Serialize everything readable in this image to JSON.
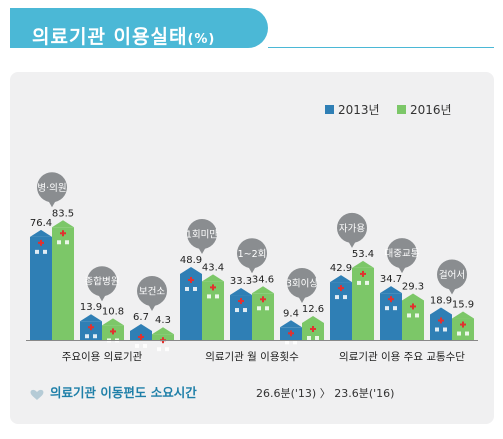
{
  "header": {
    "title": "의료기관 이용실태",
    "suffix": "(%)"
  },
  "legend": [
    {
      "label": "2013년",
      "color": "#2f7fb5"
    },
    {
      "label": "2016년",
      "color": "#7cc768"
    }
  ],
  "chart_data": {
    "type": "bar",
    "ylim": [
      0,
      100
    ],
    "series_names": [
      "2013년",
      "2016년"
    ],
    "groups": [
      {
        "label": "주요이용 의료기관",
        "items": [
          {
            "name": "병·의원",
            "values": [
              76.4,
              83.5
            ],
            "labels": [
              "76.4",
              "83.5"
            ]
          },
          {
            "name": "종합병원",
            "values": [
              13.9,
              10.8
            ],
            "labels": [
              "13.9",
              "10.8"
            ]
          },
          {
            "name": "보건소",
            "values": [
              6.7,
              4.3
            ],
            "labels": [
              "6.7",
              "4.3"
            ]
          }
        ]
      },
      {
        "label": "의료기관 월 이용횟수",
        "items": [
          {
            "name": "1회미만",
            "values": [
              48.9,
              43.4
            ],
            "labels": [
              "48.9",
              "43.4"
            ]
          },
          {
            "name": "1~2회",
            "values": [
              33.3,
              34.6
            ],
            "labels": [
              "33.3",
              "34.6"
            ]
          },
          {
            "name": "3회이상",
            "values": [
              9.4,
              12.6
            ],
            "labels": [
              "9.4",
              "12.6"
            ]
          }
        ]
      },
      {
        "label": "의료기관 이용 주요 교통수단",
        "items": [
          {
            "name": "자가용",
            "values": [
              42.9,
              53.4
            ],
            "labels": [
              "42.9",
              "53.4"
            ]
          },
          {
            "name": "대중교통",
            "values": [
              34.7,
              29.3
            ],
            "labels": [
              "34.7",
              "29.3"
            ]
          },
          {
            "name": "걸어서",
            "values": [
              18.9,
              15.9
            ],
            "labels": [
              "18.9",
              "15.9"
            ]
          }
        ]
      }
    ]
  },
  "footer": {
    "label": "의료기관 이동편도 소요시간",
    "value": "26.6분('13) 〉 23.6분('16)"
  }
}
